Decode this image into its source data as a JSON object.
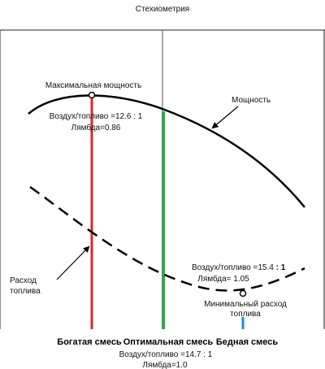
{
  "title": "Стехиометрия",
  "annotations": {
    "max_power": "Максимальная мощность",
    "max_power_ratio": "Воздух/топливо =12.6 : 1",
    "max_power_lambda": "Лямбда=0.86",
    "power_curve": "Мощность",
    "fuel_curve_line1": "Расход",
    "fuel_curve_line2": "топлива",
    "lean_ratio_prefix": "Воздух/топливо =15.4",
    "lean_ratio_suffix": " : 1",
    "lean_lambda": "Лямбда= 1.05",
    "min_fuel_line1": "Минимальный расход",
    "min_fuel_line2": "топлива"
  },
  "zones": {
    "rich": "Богатая смесь",
    "optimal": "Оптимальная смесь",
    "lean": "Бедная смесь"
  },
  "stoich": {
    "ratio": "Воздух/топливо =14.7 : 1",
    "lambda": "Лямбда=1.0"
  },
  "colors": {
    "rich_marker": "#d62a2a",
    "optimal_marker": "#2ea84a",
    "lean_marker": "#1e8fd6",
    "curve": "#000000",
    "frame": "#222222"
  }
}
